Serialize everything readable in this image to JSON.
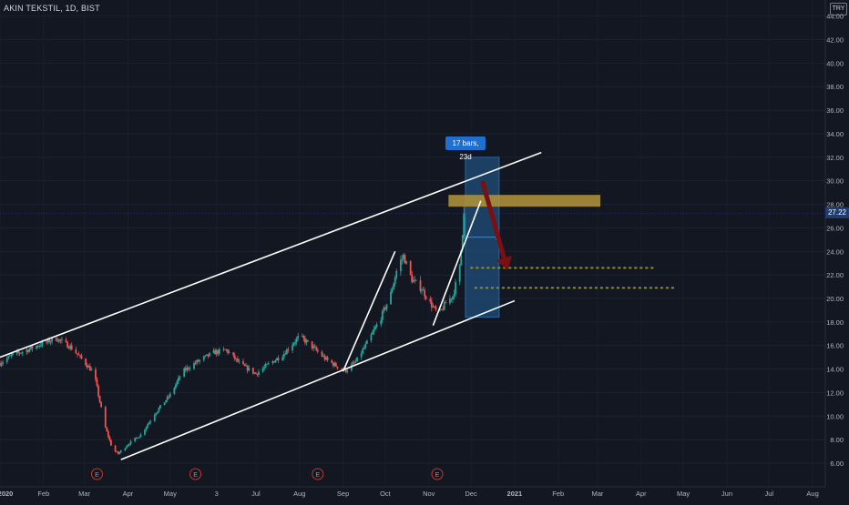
{
  "header": {
    "symbol_title": "AKIN TEKSTIL, 1D, BIST",
    "currency": "TRY"
  },
  "drawings": {
    "measure_label": "17 bars, 23d",
    "current_price_label": "27.22",
    "earnings_marker": "E"
  },
  "colors": {
    "background": "#131722",
    "candle_up": "#26a69a",
    "candle_down": "#ef5350",
    "trend_lines": "#ffffff",
    "resistance_zone": "#b5953a",
    "measure_box": "#1f4f7a",
    "forecast_arrow": "#7a0f14",
    "target_dots": "#8a8f3a"
  },
  "chart_data": {
    "type": "candlestick",
    "title": "AKIN TEKSTIL, 1D, BIST",
    "y_axis": {
      "range": [
        5.0,
        45.5
      ],
      "ticks": [
        "6.00",
        "8.00",
        "10.00",
        "12.00",
        "14.00",
        "16.00",
        "18.00",
        "20.00",
        "22.00",
        "24.00",
        "26.00",
        "28.00",
        "30.00",
        "32.00",
        "34.00",
        "36.00",
        "38.00",
        "40.00",
        "42.00",
        "44.00"
      ],
      "tick_values": [
        6,
        8,
        10,
        12,
        14,
        16,
        18,
        20,
        22,
        24,
        26,
        28,
        30,
        32,
        34,
        36,
        38,
        40,
        42,
        44
      ],
      "position": "right"
    },
    "x_axis": {
      "labels": [
        "2020",
        "Feb",
        "Mar",
        "Apr",
        "May",
        "3",
        "Jul",
        "Aug",
        "Sep",
        "Oct",
        "Nov",
        "Dec",
        "2021",
        "Feb",
        "Mar",
        "Apr",
        "May",
        "Jun",
        "Jul",
        "Aug"
      ],
      "label_dates": [
        "2020-01-01",
        "2020-02-01",
        "2020-03-01",
        "2020-04-01",
        "2020-05-01",
        "2020-06-03",
        "2020-07-01",
        "2020-08-01",
        "2020-09-01",
        "2020-10-01",
        "2020-11-01",
        "2020-12-01",
        "2021-01-01",
        "2021-02-01",
        "2021-03-01",
        "2021-04-01",
        "2021-05-01",
        "2021-06-01",
        "2021-07-01",
        "2021-08-01"
      ],
      "range": [
        "2020-01-01",
        "2021-08-10"
      ]
    },
    "last_price": 27.22,
    "price_path": [
      [
        "2020-01-01",
        14.5
      ],
      [
        "2020-01-10",
        15.2
      ],
      [
        "2020-01-20",
        15.6
      ],
      [
        "2020-02-01",
        16.2
      ],
      [
        "2020-02-10",
        16.6
      ],
      [
        "2020-02-20",
        15.9
      ],
      [
        "2020-03-01",
        14.6
      ],
      [
        "2020-03-08",
        13.6
      ],
      [
        "2020-03-12",
        11.2
      ],
      [
        "2020-03-16",
        9.0
      ],
      [
        "2020-03-21",
        7.2
      ],
      [
        "2020-03-25",
        6.8
      ],
      [
        "2020-04-01",
        7.6
      ],
      [
        "2020-04-10",
        8.4
      ],
      [
        "2020-04-20",
        10.2
      ],
      [
        "2020-05-01",
        11.8
      ],
      [
        "2020-05-10",
        13.8
      ],
      [
        "2020-05-20",
        14.6
      ],
      [
        "2020-06-01",
        15.4
      ],
      [
        "2020-06-10",
        15.6
      ],
      [
        "2020-06-20",
        14.4
      ],
      [
        "2020-07-01",
        13.6
      ],
      [
        "2020-07-10",
        14.4
      ],
      [
        "2020-07-20",
        15.2
      ],
      [
        "2020-08-01",
        16.8
      ],
      [
        "2020-08-10",
        15.9
      ],
      [
        "2020-08-20",
        14.8
      ],
      [
        "2020-08-28",
        14.2
      ],
      [
        "2020-09-03",
        13.9
      ],
      [
        "2020-09-10",
        14.6
      ],
      [
        "2020-09-20",
        16.6
      ],
      [
        "2020-09-28",
        18.4
      ],
      [
        "2020-10-05",
        20.4
      ],
      [
        "2020-10-10",
        22.8
      ],
      [
        "2020-10-14",
        23.6
      ],
      [
        "2020-10-20",
        21.6
      ],
      [
        "2020-10-27",
        20.8
      ],
      [
        "2020-11-02",
        19.6
      ],
      [
        "2020-11-08",
        18.6
      ],
      [
        "2020-11-13",
        19.6
      ],
      [
        "2020-11-18",
        20.2
      ],
      [
        "2020-11-23",
        22.6
      ],
      [
        "2020-11-26",
        27.22
      ]
    ],
    "earnings_dates": [
      "2020-03-10",
      "2020-05-19",
      "2020-08-14",
      "2020-11-07"
    ],
    "trendlines": [
      {
        "name": "channel-upper",
        "from": [
          "2020-01-01",
          15.0
        ],
        "to": [
          "2021-01-20",
          32.4
        ]
      },
      {
        "name": "channel-lower",
        "from": [
          "2020-03-27",
          6.3
        ],
        "to": [
          "2021-01-01",
          19.8
        ]
      },
      {
        "name": "impulse-up-1",
        "from": [
          "2020-09-01",
          13.8
        ],
        "to": [
          "2020-10-08",
          24.0
        ]
      },
      {
        "name": "impulse-up-2",
        "from": [
          "2020-11-04",
          17.7
        ],
        "to": [
          "2020-12-08",
          28.3
        ]
      }
    ],
    "resistance_zone": {
      "from": "2020-11-15",
      "to": "2021-03-03",
      "low": 27.8,
      "high": 28.8
    },
    "measure_box": {
      "from": "2020-11-27",
      "to": "2020-12-21",
      "low": 18.4,
      "high": 32.0,
      "mid_arrow_price": 25.2
    },
    "forecast_arrow": {
      "from": [
        "2020-12-09",
        30.0
      ],
      "to": [
        "2020-12-27",
        22.4
      ]
    },
    "target_levels": [
      {
        "price": 22.6,
        "from": "2020-12-01",
        "to": "2021-04-11"
      },
      {
        "price": 20.9,
        "from": "2020-12-04",
        "to": "2021-04-25"
      }
    ]
  }
}
